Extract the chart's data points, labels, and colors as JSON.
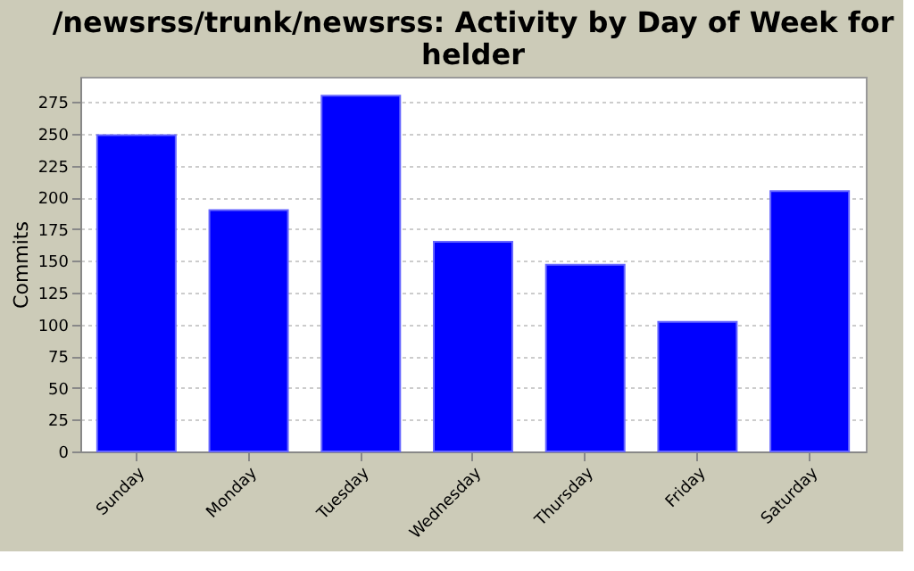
{
  "chart_data": {
    "type": "bar",
    "title": [
      "/newsrss/trunk/newsrss: Activity by Day of Week for",
      "helder"
    ],
    "ylabel": "Commits",
    "categories": [
      "Sunday",
      "Monday",
      "Tuesday",
      "Wednesday",
      "Thursday",
      "Friday",
      "Saturday"
    ],
    "values": [
      249,
      190,
      280,
      165,
      147,
      102,
      205
    ],
    "color": "#0000ff",
    "ylim": [
      0,
      295
    ],
    "yticks": [
      0,
      25,
      50,
      75,
      100,
      125,
      150,
      175,
      200,
      225,
      250,
      275
    ],
    "grid": "y"
  }
}
